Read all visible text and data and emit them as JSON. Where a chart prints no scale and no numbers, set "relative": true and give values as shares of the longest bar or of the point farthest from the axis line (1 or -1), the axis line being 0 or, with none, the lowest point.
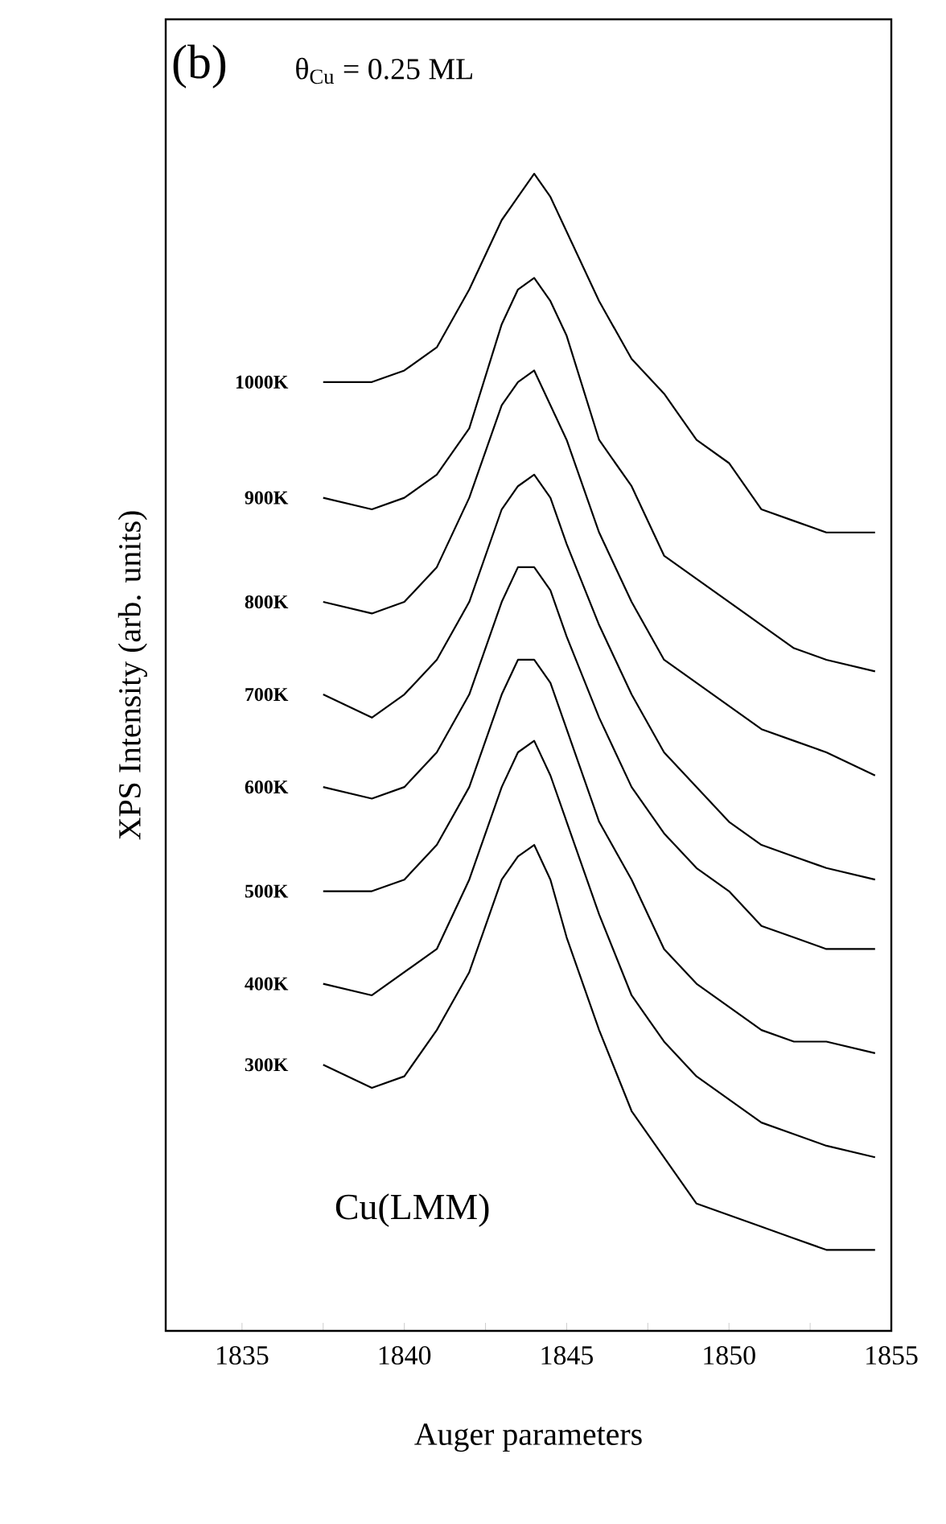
{
  "chart_data": {
    "type": "line",
    "relative": true,
    "xlabel": "Auger parameters",
    "ylabel": "XPS Intensity (arb. units)",
    "annotations": [
      "(b)",
      "θ$_{Cu}$ = 0.25 ML",
      "Cu(LMM)"
    ],
    "x": [
      1837.5,
      1839,
      1840,
      1841,
      1842,
      1843,
      1843.5,
      1844,
      1844.5,
      1845,
      1846,
      1847,
      1848,
      1849,
      1850,
      1851,
      1852,
      1853,
      1854.5
    ],
    "xlim": [
      1832.65,
      1855
    ],
    "xticks": [
      1835,
      {
        "value": 1837.5,
        "label": null
      },
      1840,
      {
        "value": 1842.5,
        "label": null
      },
      1845,
      {
        "value": 1847.5,
        "label": null
      },
      1850,
      {
        "value": 1852.5,
        "label": null
      },
      1855
    ],
    "grid": false,
    "legend": false,
    "marker": "none",
    "line_style": "solid",
    "tick_labels": "x",
    "series": [
      {
        "name": "1000K",
        "color": "#000000",
        "values": [
          0.82,
          0.82,
          0.83,
          0.85,
          0.9,
          0.96,
          0.98,
          1,
          0.98,
          0.95,
          0.89,
          0.84,
          0.81,
          0.77,
          0.75,
          0.71,
          0.7,
          0.69,
          0.69
        ]
      },
      {
        "name": "900K",
        "color": "#000000",
        "values": [
          0.72,
          0.71,
          0.72,
          0.74,
          0.78,
          0.87,
          0.9,
          0.91,
          0.89,
          0.86,
          0.77,
          0.73,
          0.67,
          0.65,
          0.63,
          0.61,
          0.59,
          0.58,
          0.57
        ]
      },
      {
        "name": "800K",
        "color": "#000000",
        "values": [
          0.63,
          0.62,
          0.63,
          0.66,
          0.72,
          0.8,
          0.82,
          0.83,
          0.8,
          0.77,
          0.69,
          0.63,
          0.58,
          0.56,
          0.54,
          0.52,
          0.51,
          0.5,
          0.48
        ]
      },
      {
        "name": "700K",
        "color": "#000000",
        "values": [
          0.55,
          0.53,
          0.55,
          0.58,
          0.63,
          0.71,
          0.73,
          0.74,
          0.72,
          0.68,
          0.61,
          0.55,
          0.5,
          0.47,
          0.44,
          0.42,
          0.41,
          0.4,
          0.39
        ]
      },
      {
        "name": "600K",
        "color": "#000000",
        "values": [
          0.47,
          0.46,
          0.47,
          0.5,
          0.55,
          0.63,
          0.66,
          0.66,
          0.64,
          0.6,
          0.53,
          0.47,
          0.43,
          0.4,
          0.38,
          0.35,
          0.34,
          0.33,
          0.33
        ]
      },
      {
        "name": "500K",
        "color": "#000000",
        "values": [
          0.38,
          0.38,
          0.39,
          0.42,
          0.47,
          0.55,
          0.58,
          0.58,
          0.56,
          0.52,
          0.44,
          0.39,
          0.33,
          0.3,
          0.28,
          0.26,
          0.25,
          0.25,
          0.24
        ]
      },
      {
        "name": "400K",
        "color": "#000000",
        "values": [
          0.3,
          0.29,
          0.31,
          0.33,
          0.39,
          0.47,
          0.5,
          0.51,
          0.48,
          0.44,
          0.36,
          0.29,
          0.25,
          0.22,
          0.2,
          0.18,
          0.17,
          0.16,
          0.15
        ]
      },
      {
        "name": "300K",
        "color": "#000000",
        "values": [
          0.23,
          0.21,
          0.22,
          0.26,
          0.31,
          0.39,
          0.41,
          0.42,
          0.39,
          0.34,
          0.26,
          0.19,
          0.15,
          0.11,
          0.1,
          0.09,
          0.08,
          0.07,
          0.07
        ]
      }
    ]
  }
}
